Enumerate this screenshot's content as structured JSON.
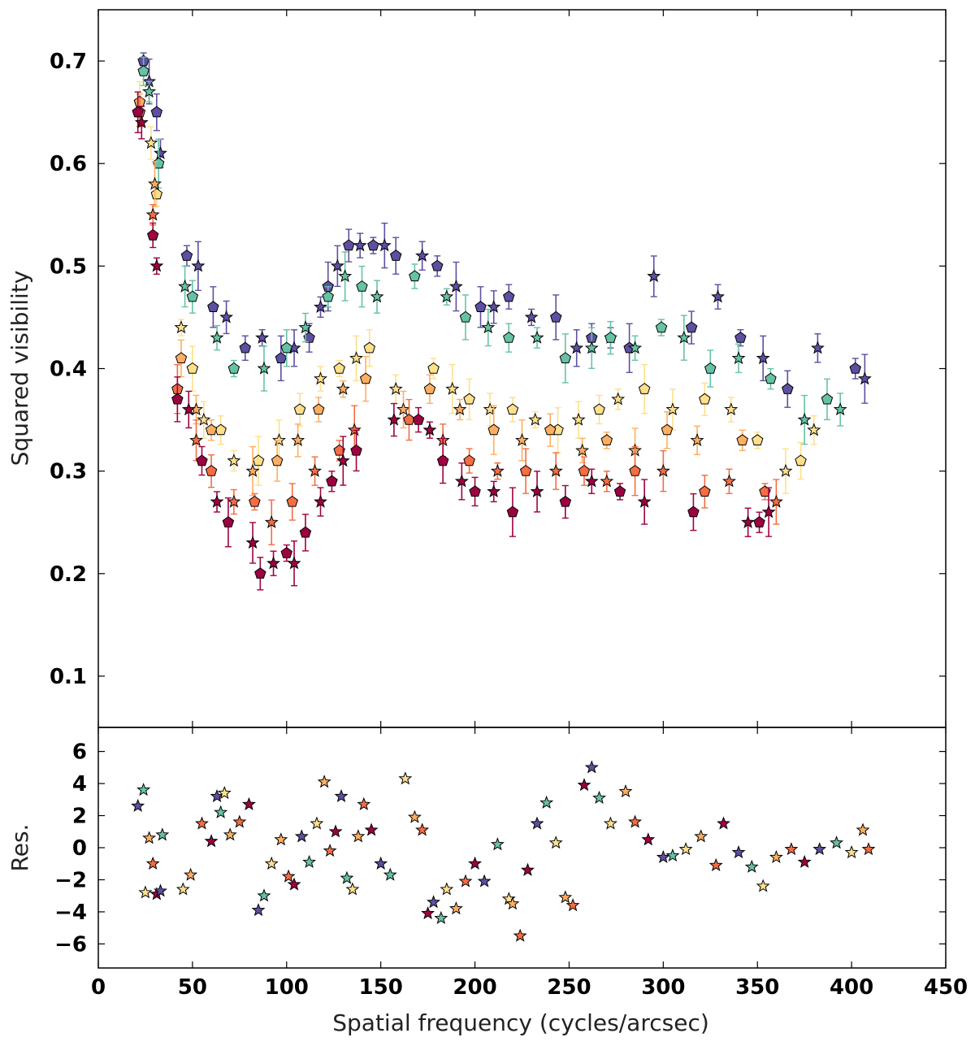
{
  "chart_data": [
    {
      "type": "scatter",
      "panel": "main",
      "title": "",
      "xlabel": "",
      "ylabel": "Squared visibility",
      "xlim": [
        0,
        450
      ],
      "ylim": [
        0.05,
        0.75
      ],
      "yticks": [
        0.1,
        0.2,
        0.3,
        0.4,
        0.5,
        0.6,
        0.7
      ],
      "ytick_labels": [
        "0.1",
        "0.2",
        "0.3",
        "0.4",
        "0.5",
        "0.6",
        "0.7"
      ],
      "grid": false,
      "legend": "none",
      "error_bars": true,
      "markers": [
        "pentagon",
        "star"
      ],
      "series": [
        {
          "color": "#5e4fa2",
          "points": [
            [
              24,
              0.7
            ],
            [
              27,
              0.68
            ],
            [
              31,
              0.65
            ],
            [
              33,
              0.61
            ],
            [
              47,
              0.51
            ],
            [
              53,
              0.5
            ],
            [
              61,
              0.46
            ],
            [
              68,
              0.45
            ],
            [
              78,
              0.42
            ],
            [
              87,
              0.43
            ],
            [
              97,
              0.41
            ],
            [
              104,
              0.42
            ],
            [
              112,
              0.43
            ],
            [
              118,
              0.46
            ],
            [
              122,
              0.48
            ],
            [
              127,
              0.5
            ],
            [
              133,
              0.52
            ],
            [
              139,
              0.52
            ],
            [
              146,
              0.52
            ],
            [
              152,
              0.52
            ],
            [
              158,
              0.51
            ],
            [
              172,
              0.51
            ],
            [
              180,
              0.5
            ],
            [
              190,
              0.48
            ],
            [
              203,
              0.46
            ],
            [
              210,
              0.46
            ],
            [
              218,
              0.47
            ],
            [
              230,
              0.45
            ],
            [
              243,
              0.45
            ],
            [
              254,
              0.42
            ],
            [
              262,
              0.43
            ],
            [
              272,
              0.43
            ],
            [
              282,
              0.42
            ],
            [
              295,
              0.49
            ],
            [
              315,
              0.44
            ],
            [
              329,
              0.47
            ],
            [
              341,
              0.43
            ],
            [
              353,
              0.41
            ],
            [
              366,
              0.38
            ],
            [
              382,
              0.42
            ],
            [
              402,
              0.4
            ],
            [
              407,
              0.39
            ]
          ]
        },
        {
          "color": "#66c2a5",
          "points": [
            [
              24,
              0.69
            ],
            [
              27,
              0.67
            ],
            [
              32,
              0.6
            ],
            [
              46,
              0.48
            ],
            [
              50,
              0.47
            ],
            [
              63,
              0.43
            ],
            [
              72,
              0.4
            ],
            [
              88,
              0.4
            ],
            [
              100,
              0.42
            ],
            [
              110,
              0.44
            ],
            [
              122,
              0.47
            ],
            [
              131,
              0.49
            ],
            [
              140,
              0.48
            ],
            [
              148,
              0.47
            ],
            [
              168,
              0.49
            ],
            [
              185,
              0.47
            ],
            [
              195,
              0.45
            ],
            [
              207,
              0.44
            ],
            [
              218,
              0.43
            ],
            [
              233,
              0.43
            ],
            [
              248,
              0.41
            ],
            [
              262,
              0.42
            ],
            [
              272,
              0.43
            ],
            [
              285,
              0.42
            ],
            [
              299,
              0.44
            ],
            [
              311,
              0.43
            ],
            [
              325,
              0.4
            ],
            [
              340,
              0.41
            ],
            [
              357,
              0.39
            ],
            [
              375,
              0.35
            ],
            [
              387,
              0.37
            ],
            [
              394,
              0.36
            ]
          ]
        },
        {
          "color": "#fee08b",
          "points": [
            [
              22,
              0.66
            ],
            [
              28,
              0.62
            ],
            [
              31,
              0.57
            ],
            [
              44,
              0.44
            ],
            [
              50,
              0.4
            ],
            [
              56,
              0.35
            ],
            [
              65,
              0.34
            ],
            [
              72,
              0.31
            ],
            [
              85,
              0.31
            ],
            [
              96,
              0.33
            ],
            [
              107,
              0.36
            ],
            [
              118,
              0.39
            ],
            [
              128,
              0.4
            ],
            [
              137,
              0.41
            ],
            [
              144,
              0.42
            ],
            [
              158,
              0.38
            ],
            [
              178,
              0.4
            ],
            [
              188,
              0.38
            ],
            [
              197,
              0.37
            ],
            [
              208,
              0.36
            ],
            [
              220,
              0.36
            ],
            [
              232,
              0.35
            ],
            [
              244,
              0.34
            ],
            [
              255,
              0.35
            ],
            [
              266,
              0.36
            ],
            [
              276,
              0.37
            ],
            [
              290,
              0.38
            ],
            [
              305,
              0.36
            ],
            [
              322,
              0.37
            ],
            [
              336,
              0.36
            ],
            [
              350,
              0.33
            ],
            [
              365,
              0.3
            ],
            [
              373,
              0.31
            ],
            [
              380,
              0.34
            ]
          ]
        },
        {
          "color": "#fdae61",
          "points": [
            [
              22,
              0.66
            ],
            [
              30,
              0.58
            ],
            [
              44,
              0.41
            ],
            [
              52,
              0.36
            ],
            [
              60,
              0.34
            ],
            [
              82,
              0.3
            ],
            [
              95,
              0.31
            ],
            [
              106,
              0.33
            ],
            [
              117,
              0.36
            ],
            [
              130,
              0.38
            ],
            [
              142,
              0.39
            ],
            [
              162,
              0.36
            ],
            [
              176,
              0.38
            ],
            [
              192,
              0.36
            ],
            [
              210,
              0.34
            ],
            [
              225,
              0.33
            ],
            [
              240,
              0.34
            ],
            [
              257,
              0.32
            ],
            [
              270,
              0.33
            ],
            [
              285,
              0.32
            ],
            [
              302,
              0.34
            ],
            [
              318,
              0.33
            ],
            [
              342,
              0.33
            ]
          ]
        },
        {
          "color": "#f46d43",
          "points": [
            [
              22,
              0.65
            ],
            [
              29,
              0.55
            ],
            [
              42,
              0.38
            ],
            [
              52,
              0.33
            ],
            [
              60,
              0.3
            ],
            [
              72,
              0.27
            ],
            [
              83,
              0.27
            ],
            [
              92,
              0.25
            ],
            [
              103,
              0.27
            ],
            [
              115,
              0.3
            ],
            [
              128,
              0.32
            ],
            [
              136,
              0.34
            ],
            [
              165,
              0.35
            ],
            [
              183,
              0.33
            ],
            [
              197,
              0.31
            ],
            [
              212,
              0.3
            ],
            [
              227,
              0.3
            ],
            [
              243,
              0.3
            ],
            [
              258,
              0.3
            ],
            [
              270,
              0.29
            ],
            [
              285,
              0.3
            ],
            [
              300,
              0.3
            ],
            [
              322,
              0.28
            ],
            [
              335,
              0.29
            ],
            [
              354,
              0.28
            ],
            [
              360,
              0.27
            ]
          ]
        },
        {
          "color": "#9e0142",
          "points": [
            [
              21,
              0.65
            ],
            [
              23,
              0.64
            ],
            [
              29,
              0.53
            ],
            [
              31,
              0.5
            ],
            [
              42,
              0.37
            ],
            [
              48,
              0.36
            ],
            [
              55,
              0.31
            ],
            [
              63,
              0.27
            ],
            [
              69,
              0.25
            ],
            [
              82,
              0.23
            ],
            [
              86,
              0.2
            ],
            [
              93,
              0.21
            ],
            [
              100,
              0.22
            ],
            [
              104,
              0.21
            ],
            [
              110,
              0.24
            ],
            [
              118,
              0.27
            ],
            [
              124,
              0.29
            ],
            [
              130,
              0.31
            ],
            [
              137,
              0.32
            ],
            [
              157,
              0.35
            ],
            [
              170,
              0.35
            ],
            [
              176,
              0.34
            ],
            [
              183,
              0.31
            ],
            [
              193,
              0.29
            ],
            [
              200,
              0.28
            ],
            [
              210,
              0.28
            ],
            [
              220,
              0.26
            ],
            [
              233,
              0.28
            ],
            [
              248,
              0.27
            ],
            [
              262,
              0.29
            ],
            [
              277,
              0.28
            ],
            [
              290,
              0.27
            ],
            [
              316,
              0.26
            ],
            [
              345,
              0.25
            ],
            [
              351,
              0.25
            ],
            [
              356,
              0.26
            ]
          ]
        }
      ]
    },
    {
      "type": "scatter",
      "panel": "residuals",
      "title": "",
      "xlabel": "Spatial frequency (cycles/arcsec)",
      "ylabel": "Res.",
      "xlim": [
        0,
        450
      ],
      "ylim": [
        -7.5,
        7.5
      ],
      "xticks": [
        0,
        50,
        100,
        150,
        200,
        250,
        300,
        350,
        400,
        450
      ],
      "xtick_labels": [
        "0",
        "50",
        "100",
        "150",
        "200",
        "250",
        "300",
        "350",
        "400",
        "450"
      ],
      "yticks": [
        -6,
        -4,
        -2,
        0,
        2,
        4,
        6
      ],
      "ytick_labels": [
        "−6",
        "−4",
        "−2",
        "0",
        "2",
        "4",
        "6"
      ],
      "grid": false,
      "legend": "none",
      "markers": [
        "star"
      ],
      "points": [
        [
          21,
          2.6
        ],
        [
          24,
          3.6
        ],
        [
          25,
          -2.8
        ],
        [
          27,
          0.6
        ],
        [
          29,
          -1.0
        ],
        [
          31,
          -2.9
        ],
        [
          33,
          -2.7
        ],
        [
          34,
          0.8
        ],
        [
          45,
          -2.6
        ],
        [
          49,
          -1.7
        ],
        [
          55,
          1.5
        ],
        [
          60,
          0.4
        ],
        [
          63,
          3.2
        ],
        [
          65,
          2.2
        ],
        [
          67,
          3.4
        ],
        [
          70,
          0.8
        ],
        [
          75,
          1.6
        ],
        [
          80,
          2.7
        ],
        [
          85,
          -3.9
        ],
        [
          88,
          -3.0
        ],
        [
          92,
          -1.0
        ],
        [
          97,
          0.5
        ],
        [
          101,
          -1.8
        ],
        [
          104,
          -2.3
        ],
        [
          108,
          0.7
        ],
        [
          112,
          -0.9
        ],
        [
          116,
          1.5
        ],
        [
          120,
          4.1
        ],
        [
          123,
          -0.2
        ],
        [
          126,
          1.0
        ],
        [
          129,
          3.2
        ],
        [
          132,
          -1.9
        ],
        [
          135,
          -2.6
        ],
        [
          138,
          0.7
        ],
        [
          141,
          2.7
        ],
        [
          145,
          1.1
        ],
        [
          150,
          -1.0
        ],
        [
          155,
          -1.7
        ],
        [
          163,
          4.3
        ],
        [
          168,
          1.9
        ],
        [
          172,
          1.1
        ],
        [
          175,
          -4.1
        ],
        [
          178,
          -3.4
        ],
        [
          182,
          -4.4
        ],
        [
          185,
          -2.6
        ],
        [
          190,
          -3.8
        ],
        [
          195,
          -2.1
        ],
        [
          200,
          -1.0
        ],
        [
          205,
          -2.1
        ],
        [
          212,
          0.2
        ],
        [
          218,
          -3.2
        ],
        [
          220,
          -3.5
        ],
        [
          224,
          -5.5
        ],
        [
          228,
          -1.4
        ],
        [
          233,
          1.5
        ],
        [
          238,
          2.8
        ],
        [
          243,
          0.3
        ],
        [
          248,
          -3.1
        ],
        [
          252,
          -3.6
        ],
        [
          258,
          3.9
        ],
        [
          262,
          5.0
        ],
        [
          266,
          3.1
        ],
        [
          272,
          1.5
        ],
        [
          280,
          3.5
        ],
        [
          285,
          1.6
        ],
        [
          292,
          0.5
        ],
        [
          300,
          -0.6
        ],
        [
          305,
          -0.5
        ],
        [
          312,
          -0.1
        ],
        [
          320,
          0.7
        ],
        [
          328,
          -1.1
        ],
        [
          332,
          1.5
        ],
        [
          340,
          -0.3
        ],
        [
          347,
          -1.2
        ],
        [
          353,
          -2.4
        ],
        [
          360,
          -0.6
        ],
        [
          368,
          -0.1
        ],
        [
          375,
          -0.9
        ],
        [
          383,
          -0.1
        ],
        [
          392,
          0.3
        ],
        [
          400,
          -0.3
        ],
        [
          406,
          1.1
        ],
        [
          409,
          -0.1
        ]
      ]
    }
  ]
}
